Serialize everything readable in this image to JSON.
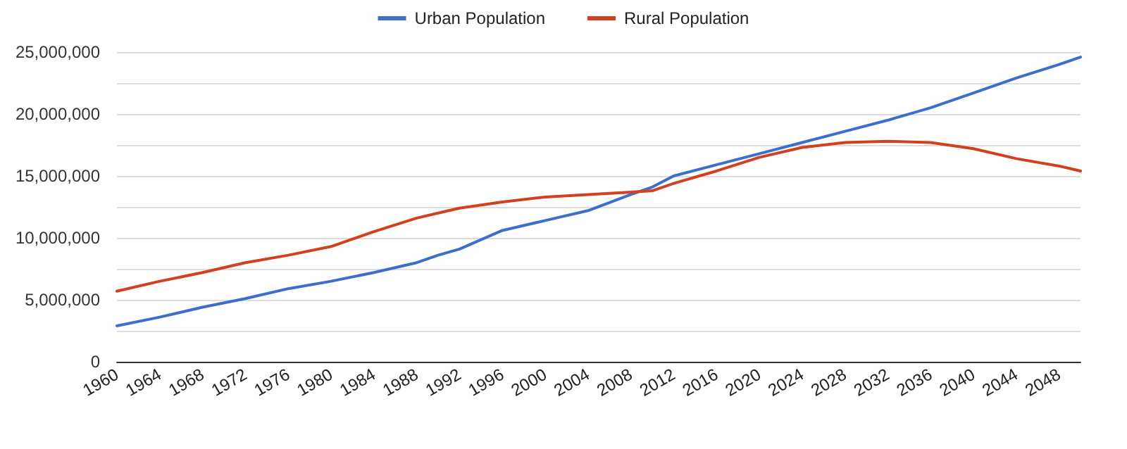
{
  "chart_data": {
    "type": "line",
    "legend": "top",
    "grid": "y",
    "marker": "none",
    "line_style": "solid",
    "x": [
      1960,
      1964,
      1968,
      1972,
      1976,
      1980,
      1984,
      1988,
      1990,
      1992,
      1996,
      2000,
      2004,
      2008,
      2010,
      2012,
      2016,
      2020,
      2024,
      2028,
      2032,
      2036,
      2040,
      2044,
      2048,
      2050
    ],
    "xlim": [
      1960,
      2050
    ],
    "xticks": [
      1960,
      1964,
      1968,
      1972,
      1976,
      1980,
      1984,
      1988,
      1992,
      1996,
      2000,
      2004,
      2008,
      2012,
      2016,
      2020,
      2024,
      2028,
      2032,
      2036,
      2040,
      2044,
      2048
    ],
    "ylim": [
      0,
      25000000
    ],
    "yticks": [
      0,
      {
        "value": 2500000,
        "label": null
      },
      {
        "value": 5000000,
        "label": "5,000,000"
      },
      {
        "value": 7500000,
        "label": null
      },
      {
        "value": 10000000,
        "label": "10,000,000"
      },
      {
        "value": 12500000,
        "label": null
      },
      {
        "value": 15000000,
        "label": "15,000,000"
      },
      {
        "value": 17500000,
        "label": null
      },
      {
        "value": 20000000,
        "label": "20,000,000"
      },
      {
        "value": 22500000,
        "label": null
      },
      {
        "value": 25000000,
        "label": "25,000,000"
      }
    ],
    "series": [
      {
        "name": "Urban Population",
        "color": "#3c6fcd",
        "values": [
          2900000,
          3600000,
          4400000,
          5100000,
          5900000,
          6500000,
          7200000,
          8000000,
          8600000,
          9100000,
          10600000,
          11400000,
          12200000,
          13500000,
          14100000,
          15000000,
          15900000,
          16800000,
          17700000,
          18600000,
          19500000,
          20500000,
          21700000,
          22900000,
          24000000,
          24600000
        ]
      },
      {
        "name": "Rural Population",
        "color": "#d3401f",
        "values": [
          5700000,
          6500000,
          7200000,
          8000000,
          8600000,
          9300000,
          10500000,
          11600000,
          12000000,
          12400000,
          12900000,
          13300000,
          13500000,
          13700000,
          13800000,
          14400000,
          15400000,
          16500000,
          17300000,
          17700000,
          17800000,
          17700000,
          17200000,
          16400000,
          15800000,
          15400000
        ]
      }
    ]
  }
}
